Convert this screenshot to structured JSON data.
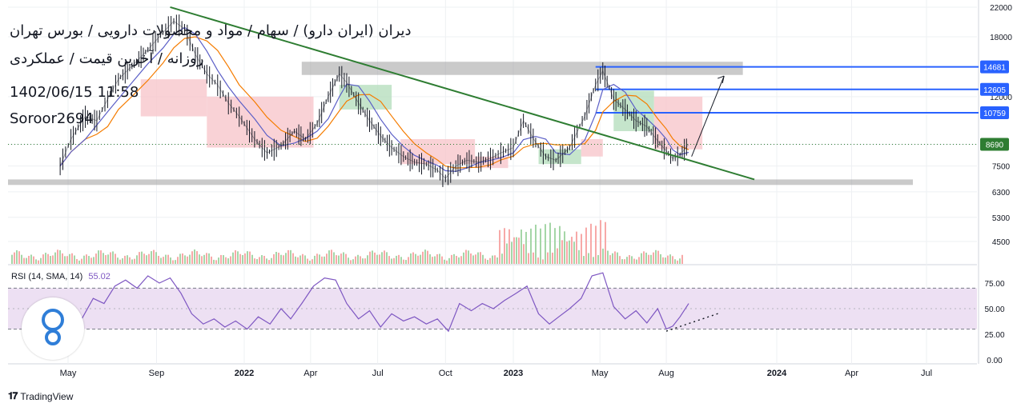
{
  "header": {
    "title": "دیران (ایران دارو) / سهام / مواد و محصولات دارویی / بورس تهران",
    "subtitle": "روزانه / آخرین قیمت / عملکردی",
    "datetime": "1402/06/15 11:58",
    "author": "Soroor2694"
  },
  "rsi_legend": {
    "label": "RSI (14, SMA, 14)",
    "value": "55.02"
  },
  "footer": {
    "brand": "TradingView"
  },
  "colors": {
    "candles": "#131722",
    "trendline": "#2e7d32",
    "resistance_lines": "#2962ff",
    "zone": "#9e9e9e",
    "rsi_line": "#7e57c2",
    "rsi_band": "#ede0f3",
    "cloud_red": "#f8c7cc",
    "cloud_green": "#b7dfbe",
    "ma_fast": "#5b5fc7",
    "ma_slow": "#f57c00",
    "last_price_label": "#2e7d32"
  },
  "chart_data": {
    "type": "line",
    "price_axis": {
      "ticks": [
        "22000",
        "18000",
        "12000",
        "8690",
        "7500",
        "6300",
        "5300",
        "4500"
      ],
      "scale": "log"
    },
    "time_axis": {
      "ticks": [
        "May",
        "Sep",
        "2022",
        "Apr",
        "Jul",
        "Oct",
        "2023",
        "May",
        "Aug",
        "2024",
        "Apr",
        "Jul"
      ]
    },
    "price_labels": [
      {
        "value": "14681",
        "kind": "resistance"
      },
      {
        "value": "12605",
        "kind": "resistance"
      },
      {
        "value": "10759",
        "kind": "resistance"
      },
      {
        "value": "8690",
        "kind": "last"
      }
    ],
    "resistance_levels": [
      14681,
      12605,
      10759
    ],
    "last_price": 8690,
    "support_zone": [
      6600,
      6850
    ],
    "resistance_zone": [
      13900,
      15200
    ],
    "price_series": {
      "name": "Close",
      "points": [
        [
          "2021-04-20",
          7500
        ],
        [
          "2021-05-05",
          9000
        ],
        [
          "2021-05-25",
          10500
        ],
        [
          "2021-06-10",
          10200
        ],
        [
          "2021-06-25",
          11800
        ],
        [
          "2021-07-10",
          13500
        ],
        [
          "2021-08-01",
          15000
        ],
        [
          "2021-08-20",
          16500
        ],
        [
          "2021-09-10",
          18500
        ],
        [
          "2021-09-25",
          20000
        ],
        [
          "2021-10-10",
          19000
        ],
        [
          "2021-10-25",
          16000
        ],
        [
          "2021-11-10",
          14000
        ],
        [
          "2021-11-25",
          13000
        ],
        [
          "2021-12-10",
          11500
        ],
        [
          "2021-12-25",
          10500
        ],
        [
          "2022-01-15",
          9000
        ],
        [
          "2022-02-01",
          8200
        ],
        [
          "2022-02-20",
          8600
        ],
        [
          "2022-03-10",
          9500
        ],
        [
          "2022-03-25",
          9000
        ],
        [
          "2022-04-10",
          10000
        ],
        [
          "2022-04-25",
          12000
        ],
        [
          "2022-05-10",
          14000
        ],
        [
          "2022-05-20",
          13200
        ],
        [
          "2022-06-05",
          11500
        ],
        [
          "2022-06-20",
          10200
        ],
        [
          "2022-07-05",
          9200
        ],
        [
          "2022-07-20",
          8500
        ],
        [
          "2022-08-05",
          8000
        ],
        [
          "2022-08-20",
          7700
        ],
        [
          "2022-09-05",
          7600
        ],
        [
          "2022-09-20",
          7300
        ],
        [
          "2022-10-01",
          6900
        ],
        [
          "2022-10-15",
          7500
        ],
        [
          "2022-10-30",
          7800
        ],
        [
          "2022-11-15",
          7700
        ],
        [
          "2022-12-01",
          7900
        ],
        [
          "2022-12-15",
          8200
        ],
        [
          "2023-01-01",
          8500
        ],
        [
          "2023-01-15",
          10200
        ],
        [
          "2023-02-01",
          8800
        ],
        [
          "2023-02-15",
          8000
        ],
        [
          "2023-03-01",
          7800
        ],
        [
          "2023-03-20",
          8500
        ],
        [
          "2023-04-10",
          10500
        ],
        [
          "2023-04-25",
          13000
        ],
        [
          "2023-05-05",
          14300
        ],
        [
          "2023-05-20",
          11800
        ],
        [
          "2023-06-05",
          11000
        ],
        [
          "2023-06-20",
          10200
        ],
        [
          "2023-07-05",
          9800
        ],
        [
          "2023-07-20",
          8900
        ],
        [
          "2023-08-01",
          8300
        ],
        [
          "2023-08-10",
          7900
        ],
        [
          "2023-08-20",
          8100
        ],
        [
          "2023-09-01",
          8690
        ]
      ]
    },
    "projection": {
      "name": "Projection",
      "points": [
        [
          "2023-09-05",
          8000
        ],
        [
          "2023-10-20",
          13800
        ]
      ]
    },
    "rsi": {
      "name": "RSI (14, SMA, 14)",
      "ylim": [
        0,
        100
      ],
      "ticks": [
        "75.00",
        "50.00",
        "25.00",
        "0.00"
      ],
      "upper": 70,
      "lower": 30,
      "current": 55.02,
      "points": [
        [
          "2021-04-20",
          45
        ],
        [
          "2021-05-05",
          20
        ],
        [
          "2021-05-20",
          40
        ],
        [
          "2021-06-05",
          60
        ],
        [
          "2021-06-20",
          55
        ],
        [
          "2021-07-05",
          72
        ],
        [
          "2021-07-20",
          78
        ],
        [
          "2021-08-05",
          70
        ],
        [
          "2021-08-20",
          82
        ],
        [
          "2021-09-05",
          75
        ],
        [
          "2021-09-20",
          80
        ],
        [
          "2021-10-05",
          65
        ],
        [
          "2021-10-20",
          45
        ],
        [
          "2021-11-05",
          35
        ],
        [
          "2021-11-20",
          40
        ],
        [
          "2021-12-05",
          32
        ],
        [
          "2021-12-20",
          38
        ],
        [
          "2022-01-05",
          30
        ],
        [
          "2022-01-20",
          42
        ],
        [
          "2022-02-05",
          35
        ],
        [
          "2022-02-20",
          50
        ],
        [
          "2022-03-05",
          40
        ],
        [
          "2022-03-20",
          55
        ],
        [
          "2022-04-05",
          72
        ],
        [
          "2022-04-20",
          80
        ],
        [
          "2022-05-05",
          78
        ],
        [
          "2022-05-20",
          55
        ],
        [
          "2022-06-05",
          40
        ],
        [
          "2022-06-20",
          48
        ],
        [
          "2022-07-05",
          32
        ],
        [
          "2022-07-20",
          45
        ],
        [
          "2022-08-05",
          38
        ],
        [
          "2022-08-20",
          42
        ],
        [
          "2022-09-05",
          35
        ],
        [
          "2022-09-20",
          40
        ],
        [
          "2022-10-05",
          28
        ],
        [
          "2022-10-20",
          55
        ],
        [
          "2022-11-05",
          48
        ],
        [
          "2022-11-20",
          55
        ],
        [
          "2022-12-05",
          50
        ],
        [
          "2022-12-20",
          58
        ],
        [
          "2023-01-05",
          65
        ],
        [
          "2023-01-20",
          72
        ],
        [
          "2023-02-05",
          45
        ],
        [
          "2023-02-20",
          35
        ],
        [
          "2023-03-05",
          42
        ],
        [
          "2023-03-20",
          50
        ],
        [
          "2023-04-05",
          60
        ],
        [
          "2023-04-20",
          82
        ],
        [
          "2023-05-05",
          85
        ],
        [
          "2023-05-20",
          52
        ],
        [
          "2023-06-05",
          40
        ],
        [
          "2023-06-20",
          48
        ],
        [
          "2023-07-05",
          36
        ],
        [
          "2023-07-20",
          50
        ],
        [
          "2023-08-01",
          30
        ],
        [
          "2023-08-10",
          33
        ],
        [
          "2023-08-20",
          42
        ],
        [
          "2023-09-01",
          55
        ]
      ]
    },
    "volume_trend": "low-moderate with spikes around May 2021, Jan 2023 and Aug 2023"
  }
}
